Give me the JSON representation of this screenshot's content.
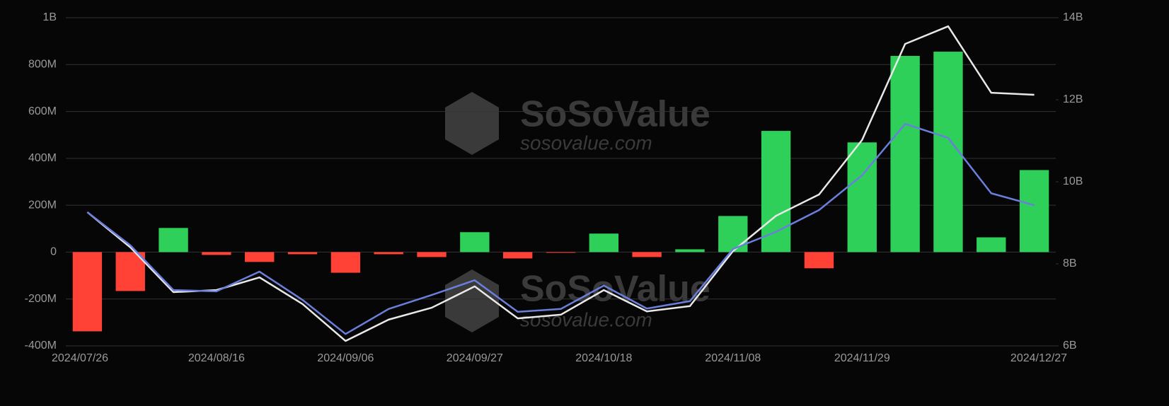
{
  "chart_data": {
    "type": "bar",
    "watermark": {
      "name": "SoSoValue",
      "url": "sosovalue.com"
    },
    "categories": [
      "2024/07/26",
      null,
      null,
      "2024/08/16",
      null,
      null,
      "2024/09/06",
      null,
      null,
      "2024/09/27",
      null,
      null,
      "2024/10/18",
      null,
      null,
      "2024/11/08",
      null,
      null,
      "2024/11/29",
      null,
      null,
      null,
      "2024/12/27"
    ],
    "values": [
      -338,
      -166,
      103,
      -12,
      -42,
      -9,
      -88,
      -9,
      -21,
      85,
      -27,
      -3,
      79,
      -21,
      12,
      154,
      517,
      -69,
      468,
      837,
      855,
      63,
      350
    ],
    "positive_color": "#2fd05a",
    "negative_color": "#ff4136",
    "series": [
      {
        "color": "#e8e8e8",
        "axis": "y2",
        "values": [
          9.26,
          8.4,
          7.31,
          7.36,
          7.67,
          7.02,
          6.12,
          6.64,
          6.93,
          7.45,
          6.67,
          6.76,
          7.36,
          6.84,
          6.97,
          8.31,
          9.17,
          9.69,
          11.02,
          13.36,
          13.79,
          12.17,
          12.12
        ]
      },
      {
        "color": "#6a7fdb",
        "axis": "y2",
        "values": [
          9.26,
          8.45,
          7.36,
          7.33,
          7.81,
          7.12,
          6.29,
          6.9,
          7.24,
          7.6,
          6.83,
          6.9,
          7.47,
          6.91,
          7.09,
          8.36,
          8.78,
          9.31,
          10.16,
          11.41,
          11.07,
          9.72,
          9.43
        ]
      }
    ],
    "ylim": [
      -400,
      1000
    ],
    "yticks": [
      {
        "value": -400,
        "label": "-400M"
      },
      {
        "value": -200,
        "label": "-200M"
      },
      0,
      {
        "value": 200,
        "label": "200M"
      },
      {
        "value": 400,
        "label": "400M"
      },
      {
        "value": 600,
        "label": "600M"
      },
      {
        "value": 800,
        "label": "800M"
      },
      {
        "value": 1000,
        "label": "1B"
      }
    ],
    "y2lim": [
      6,
      14
    ],
    "y2ticks": [
      {
        "value": 6,
        "label": "6B"
      },
      {
        "value": 8,
        "label": "8B"
      },
      {
        "value": 10,
        "label": "10B"
      },
      {
        "value": 12,
        "label": "12B"
      },
      {
        "value": 14,
        "label": "14B"
      }
    ],
    "grid": true
  }
}
